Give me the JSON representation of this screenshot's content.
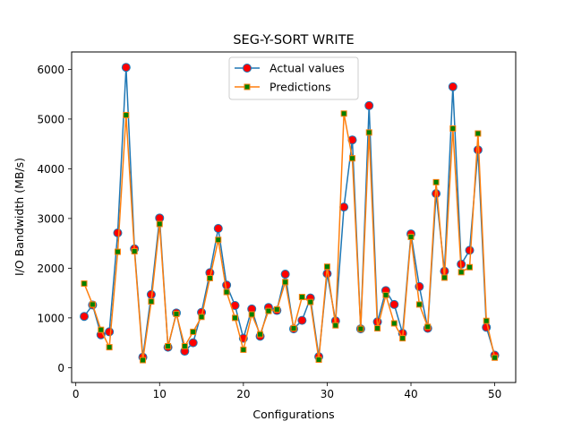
{
  "chart_data": {
    "type": "line",
    "title": "SEG-Y-SORT WRITE",
    "xlabel": "Configurations",
    "ylabel": "I/O Bandwidth (MB/s)",
    "xlim": [
      -0.5,
      52.5
    ],
    "ylim": [
      -300,
      6350
    ],
    "xticks": [
      0,
      10,
      20,
      30,
      40,
      50
    ],
    "yticks": [
      0,
      1000,
      2000,
      3000,
      4000,
      5000,
      6000
    ],
    "grid": false,
    "legend_position": "upper-center",
    "x": [
      1,
      2,
      3,
      4,
      5,
      6,
      7,
      8,
      9,
      10,
      11,
      12,
      13,
      14,
      15,
      16,
      17,
      18,
      19,
      20,
      21,
      22,
      23,
      24,
      25,
      26,
      27,
      28,
      29,
      30,
      31,
      32,
      33,
      34,
      35,
      36,
      37,
      38,
      39,
      40,
      41,
      42,
      43,
      44,
      45,
      46,
      47,
      48,
      49,
      50
    ],
    "series": [
      {
        "name": "Actual values",
        "color": "#1f77b4",
        "marker": "circle",
        "marker_fill": "#ff0000",
        "values": [
          1030,
          1260,
          660,
          720,
          2710,
          6040,
          2390,
          210,
          1470,
          3010,
          410,
          1100,
          330,
          500,
          1110,
          1910,
          2800,
          1660,
          1250,
          590,
          1180,
          630,
          1210,
          1150,
          1880,
          780,
          950,
          1400,
          220,
          1890,
          940,
          3230,
          4580,
          780,
          5270,
          920,
          1550,
          1270,
          690,
          2690,
          1630,
          790,
          3500,
          1940,
          5650,
          2080,
          2360,
          4380,
          810,
          250
        ]
      },
      {
        "name": "Predictions",
        "color": "#ff7f0e",
        "marker": "square",
        "marker_fill": "#008000",
        "values": [
          1690,
          1270,
          760,
          410,
          2330,
          5080,
          2340,
          150,
          1330,
          2890,
          430,
          1080,
          430,
          720,
          1020,
          1800,
          2570,
          1520,
          1000,
          360,
          1070,
          670,
          1140,
          1170,
          1720,
          790,
          1420,
          1320,
          160,
          2030,
          850,
          5110,
          4210,
          780,
          4730,
          790,
          1460,
          890,
          590,
          2630,
          1270,
          820,
          3730,
          1810,
          4810,
          1920,
          2020,
          4710,
          940,
          200
        ]
      }
    ]
  }
}
